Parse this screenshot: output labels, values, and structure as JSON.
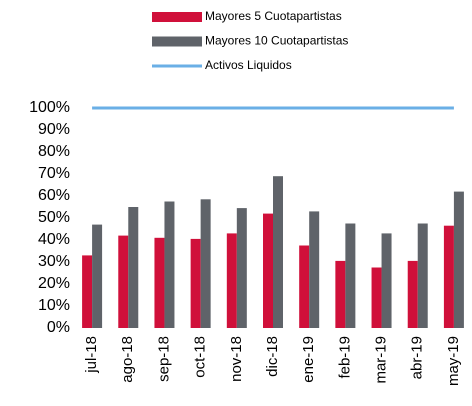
{
  "chart_data": {
    "type": "bar",
    "categories": [
      "jul-18",
      "ago-18",
      "sep-18",
      "oct-18",
      "nov-18",
      "dic-18",
      "ene-19",
      "feb-19",
      "mar-19",
      "abr-19",
      "may-19"
    ],
    "series": [
      {
        "name": "Mayores 5 Cuotapartistas",
        "color": "#d0103a",
        "type": "bar",
        "values": [
          33,
          42,
          41,
          40.5,
          43,
          52,
          37.5,
          30.5,
          27.5,
          30.5,
          46.5
        ]
      },
      {
        "name": "Mayores 10 Cuotapartistas",
        "color": "#5f6369",
        "type": "bar",
        "values": [
          47,
          55,
          57.5,
          58.5,
          54.5,
          69,
          53,
          47.5,
          43,
          47.5,
          62
        ]
      },
      {
        "name": "Activos Liquidos",
        "color": "#6aafe6",
        "type": "line",
        "values": [
          100,
          100,
          100,
          100,
          100,
          100,
          100,
          100,
          100,
          100,
          100
        ]
      }
    ],
    "ylim": [
      0,
      100
    ],
    "yticks": [
      {
        "value": 0,
        "label": "0%"
      },
      {
        "value": 10,
        "label": "10%"
      },
      {
        "value": 20,
        "label": "20%"
      },
      {
        "value": 30,
        "label": "30%"
      },
      {
        "value": 40,
        "label": "40%"
      },
      {
        "value": 50,
        "label": "50%"
      },
      {
        "value": 60,
        "label": "60%"
      },
      {
        "value": 70,
        "label": "70%"
      },
      {
        "value": 80,
        "label": "80%"
      },
      {
        "value": 90,
        "label": "90%"
      },
      {
        "value": 100,
        "label": "100%"
      }
    ],
    "grid": false
  }
}
